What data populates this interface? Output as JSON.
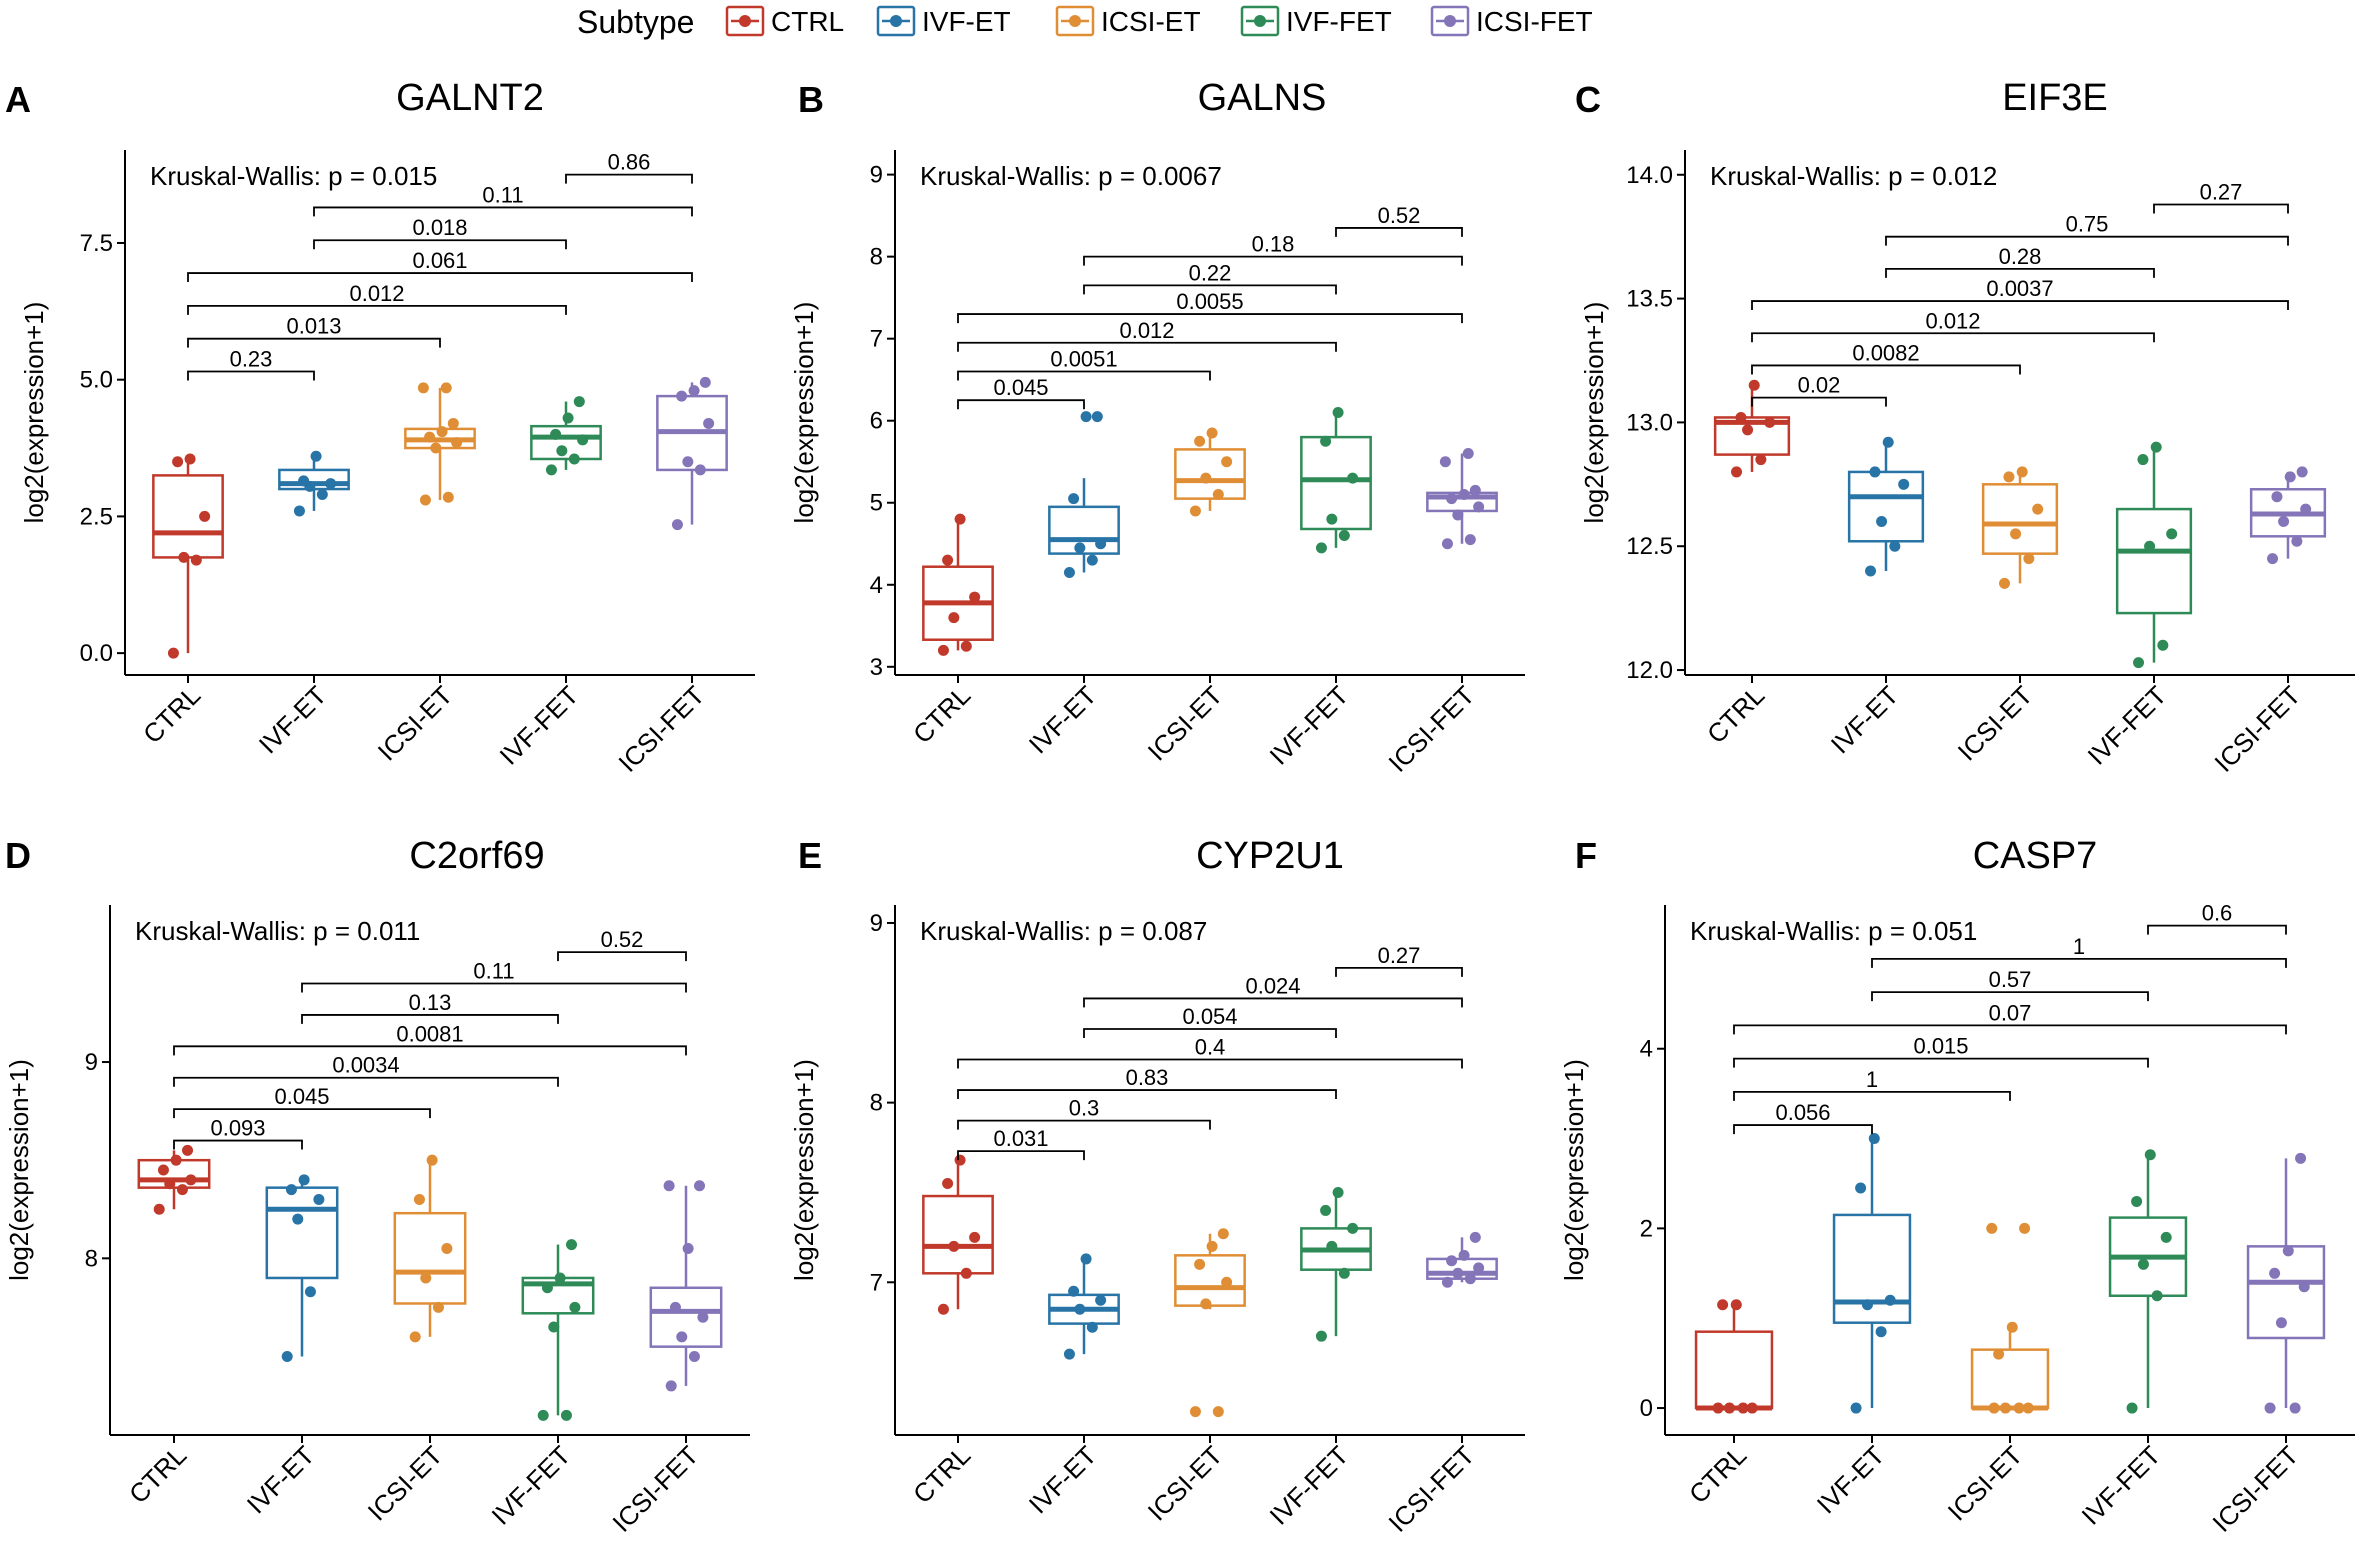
{
  "legend": {
    "title": "Subtype",
    "items": [
      {
        "label": "CTRL",
        "color": "#C0392B"
      },
      {
        "label": "IVF-ET",
        "color": "#2874A6"
      },
      {
        "label": "ICSI-ET",
        "color": "#E08E36"
      },
      {
        "label": "IVF-FET",
        "color": "#2E8B57"
      },
      {
        "label": "ICSI-FET",
        "color": "#8474B8"
      }
    ]
  },
  "chart_data": [
    {
      "type": "boxplot",
      "panel": "A",
      "title": "GALNT2",
      "ylabel": "log2(expression+1)",
      "kruskal": "Kruskal-Wallis:  p = 0.015",
      "categories": [
        "CTRL",
        "IVF-ET",
        "ICSI-ET",
        "IVF-FET",
        "ICSI-FET"
      ],
      "ylim": [
        -0.4,
        9.2
      ],
      "yticks": [
        {
          "v": 0,
          "label": "0.0"
        },
        {
          "v": 2.5,
          "label": "2.5"
        },
        {
          "v": 5,
          "label": "5.0"
        },
        {
          "v": 7.5,
          "label": "7.5"
        }
      ],
      "series": [
        {
          "name": "CTRL",
          "min": 0,
          "q1": 1.75,
          "median": 2.2,
          "q3": 3.25,
          "max": 3.55,
          "points": [
            0,
            1.7,
            1.75,
            2.5,
            3.5,
            3.55
          ]
        },
        {
          "name": "IVF-ET",
          "min": 2.6,
          "q1": 3.0,
          "median": 3.1,
          "q3": 3.35,
          "max": 3.6,
          "points": [
            2.6,
            2.9,
            3.05,
            3.1,
            3.15,
            3.6
          ]
        },
        {
          "name": "ICSI-ET",
          "min": 2.8,
          "q1": 3.75,
          "median": 3.9,
          "q3": 4.1,
          "max": 4.85,
          "points": [
            2.8,
            2.85,
            3.75,
            3.85,
            3.95,
            4.05,
            4.2,
            4.85,
            4.85
          ]
        },
        {
          "name": "IVF-FET",
          "min": 3.35,
          "q1": 3.55,
          "median": 3.95,
          "q3": 4.15,
          "max": 4.6,
          "points": [
            3.35,
            3.55,
            3.7,
            3.9,
            4.0,
            4.3,
            4.6
          ]
        },
        {
          "name": "ICSI-FET",
          "min": 2.35,
          "q1": 3.35,
          "median": 4.05,
          "q3": 4.7,
          "max": 4.95,
          "points": [
            2.35,
            3.35,
            3.5,
            4.2,
            4.7,
            4.8,
            4.95
          ]
        }
      ],
      "comparisons": [
        {
          "a": 0,
          "b": 1,
          "y": 5.15,
          "label": "0.23"
        },
        {
          "a": 0,
          "b": 2,
          "y": 5.75,
          "label": "0.013"
        },
        {
          "a": 0,
          "b": 3,
          "y": 6.35,
          "label": "0.012"
        },
        {
          "a": 0,
          "b": 4,
          "y": 6.95,
          "label": "0.061"
        },
        {
          "a": 1,
          "b": 3,
          "y": 7.55,
          "label": "0.018"
        },
        {
          "a": 1,
          "b": 4,
          "y": 8.15,
          "label": "0.11"
        },
        {
          "a": 3,
          "b": 4,
          "y": 8.75,
          "label": "0.86"
        }
      ]
    },
    {
      "type": "boxplot",
      "panel": "B",
      "title": "GALNS",
      "ylabel": "log2(expression+1)",
      "kruskal": "Kruskal-Wallis:  p = 0.0067",
      "categories": [
        "CTRL",
        "IVF-ET",
        "ICSI-ET",
        "IVF-FET",
        "ICSI-FET"
      ],
      "ylim": [
        2.9,
        9.3
      ],
      "yticks": [
        {
          "v": 3,
          "label": "3"
        },
        {
          "v": 4,
          "label": "4"
        },
        {
          "v": 5,
          "label": "5"
        },
        {
          "v": 6,
          "label": "6"
        },
        {
          "v": 7,
          "label": "7"
        },
        {
          "v": 8,
          "label": "8"
        },
        {
          "v": 9,
          "label": "9"
        }
      ],
      "series": [
        {
          "name": "CTRL",
          "min": 3.2,
          "q1": 3.33,
          "median": 3.78,
          "q3": 4.22,
          "max": 4.8,
          "points": [
            3.2,
            3.25,
            3.6,
            3.85,
            4.3,
            4.8
          ]
        },
        {
          "name": "IVF-ET",
          "min": 4.15,
          "q1": 4.38,
          "median": 4.55,
          "q3": 4.95,
          "max": 5.3,
          "points": [
            4.15,
            4.3,
            4.45,
            4.5,
            5.05,
            6.05,
            6.05
          ]
        },
        {
          "name": "ICSI-ET",
          "min": 4.9,
          "q1": 5.05,
          "median": 5.27,
          "q3": 5.65,
          "max": 5.85,
          "points": [
            4.9,
            5.1,
            5.3,
            5.5,
            5.75,
            5.85
          ]
        },
        {
          "name": "IVF-FET",
          "min": 4.45,
          "q1": 4.68,
          "median": 5.28,
          "q3": 5.8,
          "max": 6.1,
          "points": [
            4.45,
            4.6,
            4.8,
            5.3,
            5.75,
            6.1
          ]
        },
        {
          "name": "ICSI-FET",
          "min": 4.5,
          "q1": 4.9,
          "median": 5.07,
          "q3": 5.12,
          "max": 5.6,
          "points": [
            4.5,
            4.55,
            4.85,
            4.95,
            5.05,
            5.1,
            5.15,
            5.5,
            5.6
          ]
        }
      ],
      "comparisons": [
        {
          "a": 0,
          "b": 1,
          "y": 6.25,
          "label": "0.045"
        },
        {
          "a": 0,
          "b": 2,
          "y": 6.6,
          "label": "0.0051"
        },
        {
          "a": 0,
          "b": 3,
          "y": 6.95,
          "label": "0.012"
        },
        {
          "a": 0,
          "b": 4,
          "y": 7.3,
          "label": "0.0055"
        },
        {
          "a": 1,
          "b": 3,
          "y": 7.65,
          "label": "0.22"
        },
        {
          "a": 1,
          "b": 4,
          "y": 8.0,
          "label": "0.18"
        },
        {
          "a": 3,
          "b": 4,
          "y": 8.35,
          "label": "0.52"
        }
      ]
    },
    {
      "type": "boxplot",
      "panel": "C",
      "title": "EIF3E",
      "ylabel": "log2(expression+1)",
      "kruskal": "Kruskal-Wallis:  p = 0.012",
      "categories": [
        "CTRL",
        "IVF-ET",
        "ICSI-ET",
        "IVF-FET",
        "ICSI-FET"
      ],
      "ylim": [
        11.98,
        14.1
      ],
      "yticks": [
        {
          "v": 12.0,
          "label": "12.0"
        },
        {
          "v": 12.5,
          "label": "12.5"
        },
        {
          "v": 13.0,
          "label": "13.0"
        },
        {
          "v": 13.5,
          "label": "13.5"
        },
        {
          "v": 14.0,
          "label": "14.0"
        }
      ],
      "series": [
        {
          "name": "CTRL",
          "min": 12.8,
          "q1": 12.87,
          "median": 13.0,
          "q3": 13.02,
          "max": 13.15,
          "points": [
            12.8,
            12.85,
            12.97,
            13.0,
            13.02,
            13.15
          ]
        },
        {
          "name": "IVF-ET",
          "min": 12.4,
          "q1": 12.52,
          "median": 12.7,
          "q3": 12.8,
          "max": 12.92,
          "points": [
            12.4,
            12.5,
            12.6,
            12.75,
            12.8,
            12.92
          ]
        },
        {
          "name": "ICSI-ET",
          "min": 12.35,
          "q1": 12.47,
          "median": 12.59,
          "q3": 12.75,
          "max": 12.8,
          "points": [
            12.35,
            12.45,
            12.55,
            12.65,
            12.78,
            12.8
          ]
        },
        {
          "name": "IVF-FET",
          "min": 12.03,
          "q1": 12.23,
          "median": 12.48,
          "q3": 12.65,
          "max": 12.9,
          "points": [
            12.03,
            12.1,
            12.5,
            12.55,
            12.85,
            12.9
          ]
        },
        {
          "name": "ICSI-FET",
          "min": 12.45,
          "q1": 12.54,
          "median": 12.63,
          "q3": 12.73,
          "max": 12.8,
          "points": [
            12.45,
            12.52,
            12.6,
            12.65,
            12.7,
            12.78,
            12.8
          ]
        }
      ],
      "comparisons": [
        {
          "a": 0,
          "b": 1,
          "y": 13.1,
          "label": "0.02"
        },
        {
          "a": 0,
          "b": 2,
          "y": 13.23,
          "label": "0.0082"
        },
        {
          "a": 0,
          "b": 3,
          "y": 13.36,
          "label": "0.012"
        },
        {
          "a": 0,
          "b": 4,
          "y": 13.49,
          "label": "0.0037"
        },
        {
          "a": 1,
          "b": 3,
          "y": 13.62,
          "label": "0.28"
        },
        {
          "a": 1,
          "b": 4,
          "y": 13.75,
          "label": "0.75"
        },
        {
          "a": 3,
          "b": 4,
          "y": 13.88,
          "label": "0.27"
        }
      ]
    },
    {
      "type": "boxplot",
      "panel": "D",
      "title": "C2orf69",
      "ylabel": "log2(expression+1)",
      "kruskal": "Kruskal-Wallis:  p = 0.011",
      "categories": [
        "CTRL",
        "IVF-ET",
        "ICSI-ET",
        "IVF-FET",
        "ICSI-FET"
      ],
      "ylim": [
        7.1,
        9.8
      ],
      "yticks": [
        {
          "v": 8,
          "label": "8"
        },
        {
          "v": 9,
          "label": "9"
        }
      ],
      "series": [
        {
          "name": "CTRL",
          "min": 8.25,
          "q1": 8.36,
          "median": 8.4,
          "q3": 8.5,
          "max": 8.55,
          "points": [
            8.25,
            8.35,
            8.38,
            8.4,
            8.45,
            8.5,
            8.55
          ]
        },
        {
          "name": "IVF-ET",
          "min": 7.5,
          "q1": 7.9,
          "median": 8.25,
          "q3": 8.36,
          "max": 8.4,
          "points": [
            7.5,
            7.83,
            8.2,
            8.3,
            8.35,
            8.4
          ]
        },
        {
          "name": "ICSI-ET",
          "min": 7.6,
          "q1": 7.77,
          "median": 7.93,
          "q3": 8.23,
          "max": 8.5,
          "points": [
            7.6,
            7.75,
            7.9,
            8.05,
            8.3,
            8.5
          ]
        },
        {
          "name": "IVF-FET",
          "min": 7.2,
          "q1": 7.72,
          "median": 7.87,
          "q3": 7.9,
          "max": 8.07,
          "points": [
            7.2,
            7.2,
            7.65,
            7.75,
            7.85,
            7.9,
            8.07
          ]
        },
        {
          "name": "ICSI-FET",
          "min": 7.35,
          "q1": 7.55,
          "median": 7.73,
          "q3": 7.85,
          "max": 8.37,
          "points": [
            7.35,
            7.5,
            7.6,
            7.7,
            7.75,
            8.05,
            8.37,
            8.37
          ]
        }
      ],
      "comparisons": [
        {
          "a": 0,
          "b": 1,
          "y": 8.6,
          "label": "0.093"
        },
        {
          "a": 0,
          "b": 2,
          "y": 8.76,
          "label": "0.045"
        },
        {
          "a": 0,
          "b": 3,
          "y": 8.92,
          "label": "0.0034"
        },
        {
          "a": 0,
          "b": 4,
          "y": 9.08,
          "label": "0.0081"
        },
        {
          "a": 1,
          "b": 3,
          "y": 9.24,
          "label": "0.13"
        },
        {
          "a": 1,
          "b": 4,
          "y": 9.4,
          "label": "0.11"
        },
        {
          "a": 3,
          "b": 4,
          "y": 9.56,
          "label": "0.52"
        }
      ]
    },
    {
      "type": "boxplot",
      "panel": "E",
      "title": "CYP2U1",
      "ylabel": "log2(expression+1)",
      "kruskal": "Kruskal-Wallis:  p = 0.087",
      "categories": [
        "CTRL",
        "IVF-ET",
        "ICSI-ET",
        "IVF-FET",
        "ICSI-FET"
      ],
      "ylim": [
        6.15,
        9.1
      ],
      "yticks": [
        {
          "v": 7,
          "label": "7"
        },
        {
          "v": 8,
          "label": "8"
        },
        {
          "v": 9,
          "label": "9"
        }
      ],
      "series": [
        {
          "name": "CTRL",
          "min": 6.85,
          "q1": 7.05,
          "median": 7.2,
          "q3": 7.48,
          "max": 7.68,
          "points": [
            6.85,
            7.05,
            7.2,
            7.25,
            7.55,
            7.68
          ]
        },
        {
          "name": "IVF-ET",
          "min": 6.6,
          "q1": 6.77,
          "median": 6.85,
          "q3": 6.93,
          "max": 7.13,
          "points": [
            6.6,
            6.75,
            6.85,
            6.9,
            6.95,
            7.13
          ]
        },
        {
          "name": "ICSI-ET",
          "min": 6.85,
          "q1": 6.87,
          "median": 6.97,
          "q3": 7.15,
          "max": 7.27,
          "points": [
            6.28,
            6.28,
            6.88,
            7.0,
            7.1,
            7.2,
            7.27
          ]
        },
        {
          "name": "IVF-FET",
          "min": 6.7,
          "q1": 7.07,
          "median": 7.18,
          "q3": 7.3,
          "max": 7.5,
          "points": [
            6.7,
            7.05,
            7.2,
            7.3,
            7.4,
            7.5
          ]
        },
        {
          "name": "ICSI-FET",
          "min": 7.0,
          "q1": 7.02,
          "median": 7.05,
          "q3": 7.13,
          "max": 7.25,
          "points": [
            7.0,
            7.02,
            7.05,
            7.08,
            7.12,
            7.15,
            7.25
          ]
        }
      ],
      "comparisons": [
        {
          "a": 0,
          "b": 1,
          "y": 7.73,
          "label": "0.031"
        },
        {
          "a": 0,
          "b": 2,
          "y": 7.9,
          "label": "0.3"
        },
        {
          "a": 0,
          "b": 3,
          "y": 8.07,
          "label": "0.83"
        },
        {
          "a": 0,
          "b": 4,
          "y": 8.24,
          "label": "0.4"
        },
        {
          "a": 1,
          "b": 3,
          "y": 8.41,
          "label": "0.054"
        },
        {
          "a": 1,
          "b": 4,
          "y": 8.58,
          "label": "0.024"
        },
        {
          "a": 3,
          "b": 4,
          "y": 8.75,
          "label": "0.27"
        }
      ]
    },
    {
      "type": "boxplot",
      "panel": "F",
      "title": "CASP7",
      "ylabel": "log2(expression+1)",
      "kruskal": "Kruskal-Wallis:  p = 0.051",
      "categories": [
        "CTRL",
        "IVF-ET",
        "ICSI-ET",
        "IVF-FET",
        "ICSI-FET"
      ],
      "ylim": [
        -0.3,
        5.6
      ],
      "yticks": [
        {
          "v": 0,
          "label": "0"
        },
        {
          "v": 2,
          "label": "2"
        },
        {
          "v": 4,
          "label": "4"
        }
      ],
      "series": [
        {
          "name": "CTRL",
          "min": 0,
          "q1": 0,
          "median": 0,
          "q3": 0.85,
          "max": 1.15,
          "points": [
            0,
            0,
            0,
            0,
            1.15,
            1.15
          ]
        },
        {
          "name": "IVF-ET",
          "min": 0,
          "q1": 0.95,
          "median": 1.18,
          "q3": 2.15,
          "max": 3.0,
          "points": [
            0,
            0.85,
            1.15,
            1.2,
            2.45,
            3.0
          ]
        },
        {
          "name": "ICSI-ET",
          "min": 0,
          "q1": 0,
          "median": 0,
          "q3": 0.65,
          "max": 0.9,
          "points": [
            0,
            0,
            0,
            0,
            0.6,
            0.9,
            2.0,
            2.0
          ]
        },
        {
          "name": "IVF-FET",
          "min": 0,
          "q1": 1.25,
          "median": 1.68,
          "q3": 2.12,
          "max": 2.82,
          "points": [
            0,
            1.25,
            1.6,
            1.9,
            2.3,
            2.82
          ]
        },
        {
          "name": "ICSI-FET",
          "min": 0,
          "q1": 0.78,
          "median": 1.4,
          "q3": 1.8,
          "max": 2.78,
          "points": [
            0,
            0,
            0.95,
            1.35,
            1.5,
            1.75,
            2.78
          ]
        }
      ],
      "comparisons": [
        {
          "a": 0,
          "b": 1,
          "y": 3.15,
          "label": "0.056"
        },
        {
          "a": 0,
          "b": 2,
          "y": 3.52,
          "label": "1"
        },
        {
          "a": 0,
          "b": 3,
          "y": 3.89,
          "label": "0.015"
        },
        {
          "a": 0,
          "b": 4,
          "y": 4.26,
          "label": "0.07"
        },
        {
          "a": 1,
          "b": 3,
          "y": 4.63,
          "label": "0.57"
        },
        {
          "a": 1,
          "b": 4,
          "y": 5.0,
          "label": "1"
        },
        {
          "a": 3,
          "b": 4,
          "y": 5.37,
          "label": "0.6"
        }
      ]
    }
  ]
}
